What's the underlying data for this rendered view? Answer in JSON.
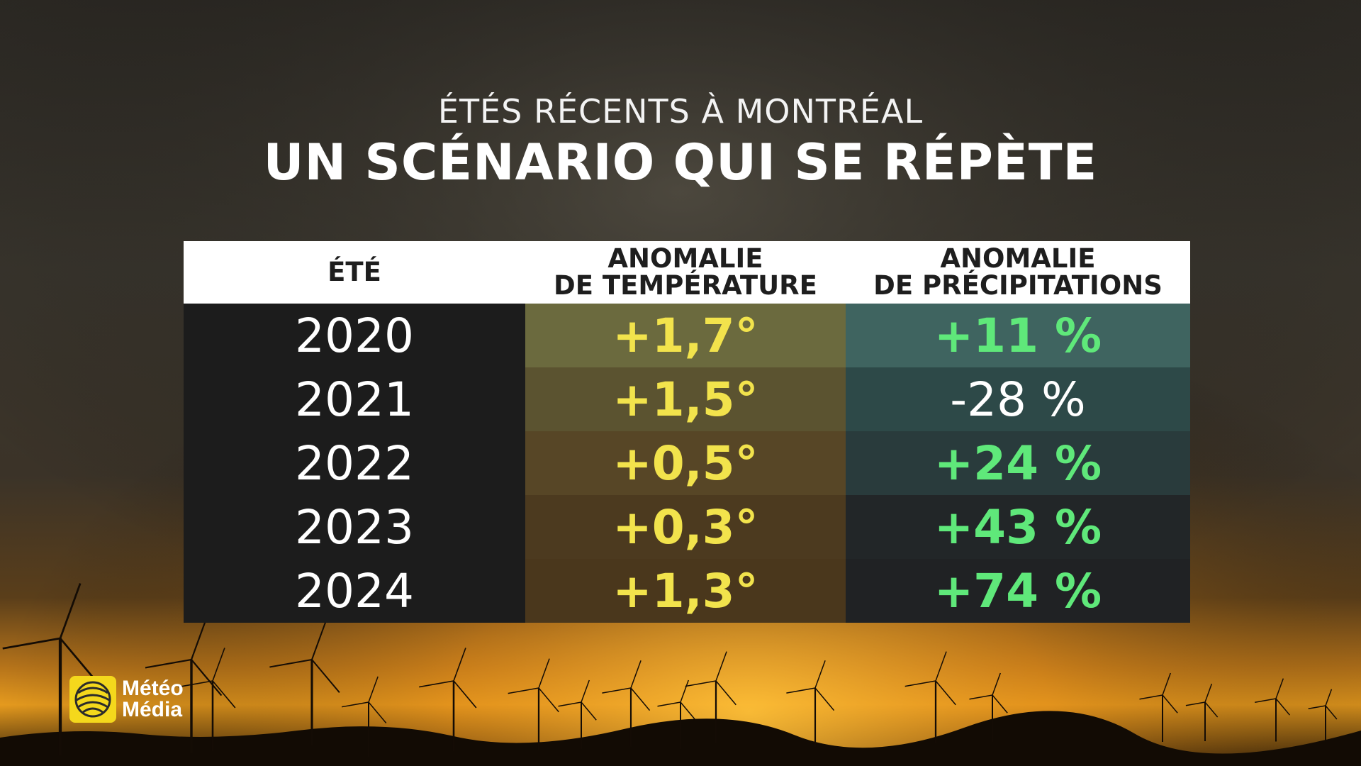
{
  "subtitle": "ÉTÉS RÉCENTS À MONTRÉAL",
  "title": "UN SCÉNARIO QUI SE RÉPÈTE",
  "table": {
    "headers": {
      "year": "ÉTÉ",
      "temp_line1": "ANOMALIE",
      "temp_line2": "DE TEMPÉRATURE",
      "precip_line1": "ANOMALIE",
      "precip_line2": "DE PRÉCIPITATIONS"
    },
    "rows": [
      {
        "year": "2020",
        "temp": "+1,7°",
        "precip": "+11 %"
      },
      {
        "year": "2021",
        "temp": "+1,5°",
        "precip": "-28 %"
      },
      {
        "year": "2022",
        "temp": "+0,5°",
        "precip": "+24 %"
      },
      {
        "year": "2023",
        "temp": "+0,3°",
        "precip": "+43 %"
      },
      {
        "year": "2024",
        "temp": "+1,3°",
        "precip": "+74 %"
      }
    ]
  },
  "chart_data": {
    "type": "table",
    "title": "UN SCÉNARIO QUI SE RÉPÈTE",
    "subtitle": "ÉTÉS RÉCENTS À MONTRÉAL",
    "columns": [
      "ÉTÉ",
      "ANOMALIE DE TEMPÉRATURE",
      "ANOMALIE DE PRÉCIPITATIONS"
    ],
    "years": [
      2020,
      2021,
      2022,
      2023,
      2024
    ],
    "temperature_anomaly_deg": [
      1.7,
      1.5,
      0.5,
      0.3,
      1.3
    ],
    "precipitation_anomaly_pct": [
      11,
      -28,
      24,
      43,
      74
    ]
  },
  "colors": {
    "header_bg": "#ffffff",
    "header_text": "#1e1e1e",
    "year_text": "#ffffff",
    "temp_text": "#f2e34c",
    "precip_positive": "#5fe87a",
    "precip_negative": "#ffffff",
    "year_bg": "#1c1c1c",
    "temp_bg": [
      "#6b6a3e",
      "#5b5330",
      "#574626",
      "#4c3a1f",
      "#4a371c"
    ],
    "precip_bg": [
      "#3f6460",
      "#2d4948",
      "#293b3c",
      "#222628",
      "#202224"
    ],
    "logo_yellow": "#f4d81c"
  },
  "logo": {
    "line1": "Météo",
    "line2": "Média",
    "icon": "globe-icon"
  }
}
